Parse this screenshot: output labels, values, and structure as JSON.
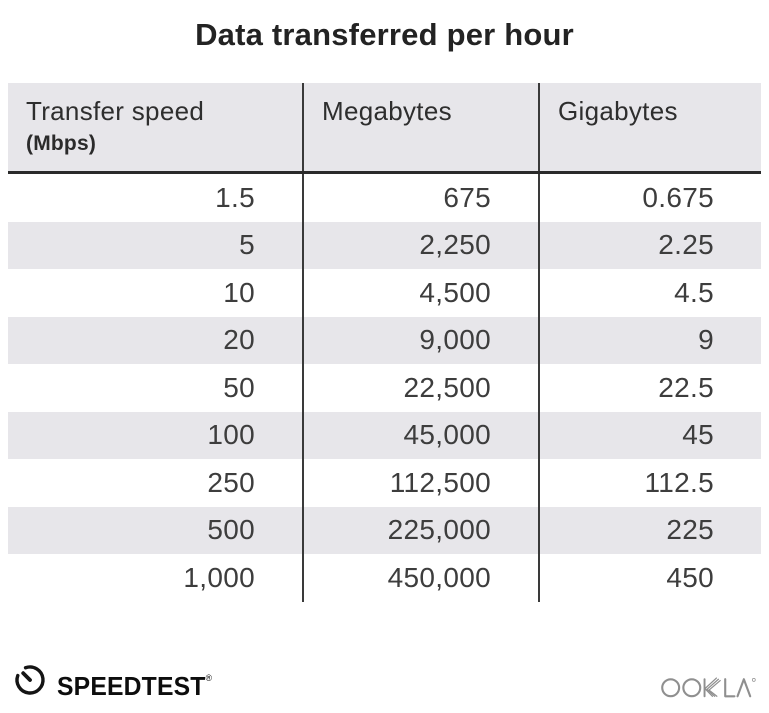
{
  "title": "Data transferred per hour",
  "table": {
    "columns": [
      {
        "label": "Transfer speed",
        "sublabel": "(Mbps)"
      },
      {
        "label": "Megabytes",
        "sublabel": ""
      },
      {
        "label": "Gigabytes",
        "sublabel": ""
      }
    ],
    "rows": [
      [
        "1.5",
        "675",
        "0.675"
      ],
      [
        "5",
        "2,250",
        "2.25"
      ],
      [
        "10",
        "4,500",
        "4.5"
      ],
      [
        "20",
        "9,000",
        "9"
      ],
      [
        "50",
        "22,500",
        "22.5"
      ],
      [
        "100",
        "45,000",
        "45"
      ],
      [
        "250",
        "112,500",
        "112.5"
      ],
      [
        "500",
        "225,000",
        "225"
      ],
      [
        "1,000",
        "450,000",
        "450"
      ]
    ]
  },
  "footer": {
    "speedtest_label": "SPEEDTEST",
    "speedtest_trademark": "®",
    "ookla_label": "OOKLA"
  },
  "colors": {
    "header_bg": "#e7e6ea",
    "zebra_bg": "#e7e6ea",
    "divider": "#3a3a3a",
    "header_rule": "#2a2a2a",
    "cell_text": "#3d3d3d",
    "title_text": "#232323",
    "speedtest_black": "#0d0d0d",
    "ookla_gray": "#8f8f8f"
  },
  "chart_data": {
    "type": "table",
    "title": "Data transferred per hour",
    "columns": [
      "Transfer speed (Mbps)",
      "Megabytes",
      "Gigabytes"
    ],
    "rows": [
      [
        1.5,
        675,
        0.675
      ],
      [
        5,
        2250,
        2.25
      ],
      [
        10,
        4500,
        4.5
      ],
      [
        20,
        9000,
        9
      ],
      [
        50,
        22500,
        22.5
      ],
      [
        100,
        45000,
        45
      ],
      [
        250,
        112500,
        112.5
      ],
      [
        500,
        225000,
        225
      ],
      [
        1000,
        450000,
        450
      ]
    ],
    "layout": {
      "zebra_striping": true,
      "value_alignment": "right",
      "header_alignment": "left"
    }
  }
}
